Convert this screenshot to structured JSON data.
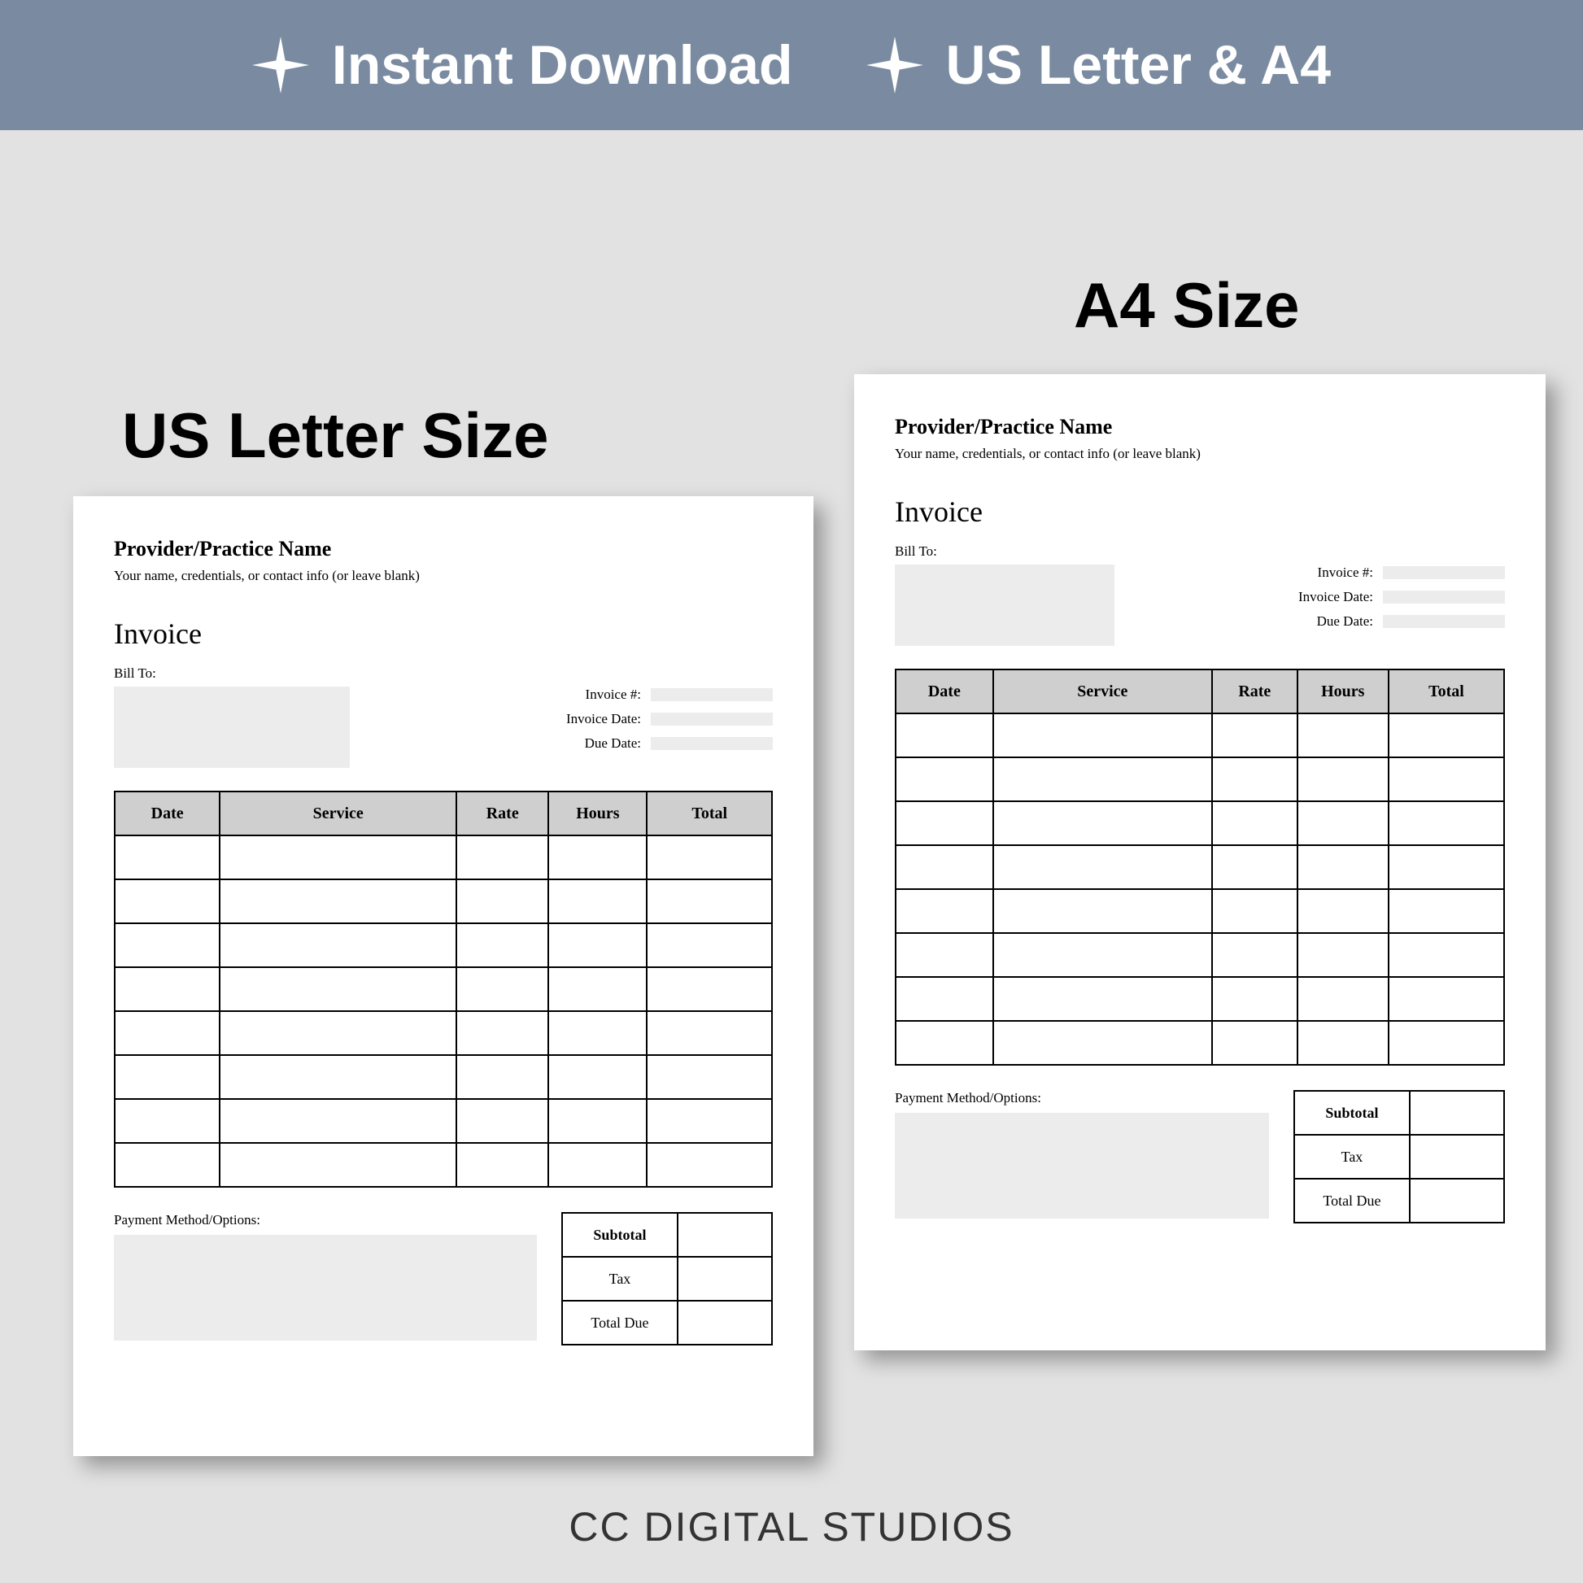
{
  "banner": {
    "background_color": "#7a8ba1",
    "text_color": "#ffffff",
    "items": [
      {
        "icon": "sparkle",
        "label": "Instant Download"
      },
      {
        "icon": "sparkle",
        "label": "US Letter & A4"
      }
    ]
  },
  "page_background_color": "#e2e2e2",
  "labels": {
    "us": "US Letter Size",
    "a4": "A4 Size"
  },
  "invoice": {
    "provider_name": "Provider/Practice Name",
    "provider_subline": "Your name, credentials, or contact info (or leave blank)",
    "title": "Invoice",
    "bill_to_label": "Bill To:",
    "meta_fields": [
      "Invoice #:",
      "Invoice Date:",
      "Due Date:"
    ],
    "columns": [
      "Date",
      "Service",
      "Rate",
      "Hours",
      "Total"
    ],
    "row_count": 8,
    "payment_label": "Payment Method/Options:",
    "totals": [
      "Subtotal",
      "Tax",
      "Total Due"
    ],
    "header_fill": "#cfcfcf",
    "field_fill": "#ececec",
    "border_color": "#000000"
  },
  "footer": "CC DIGITAL STUDIOS"
}
